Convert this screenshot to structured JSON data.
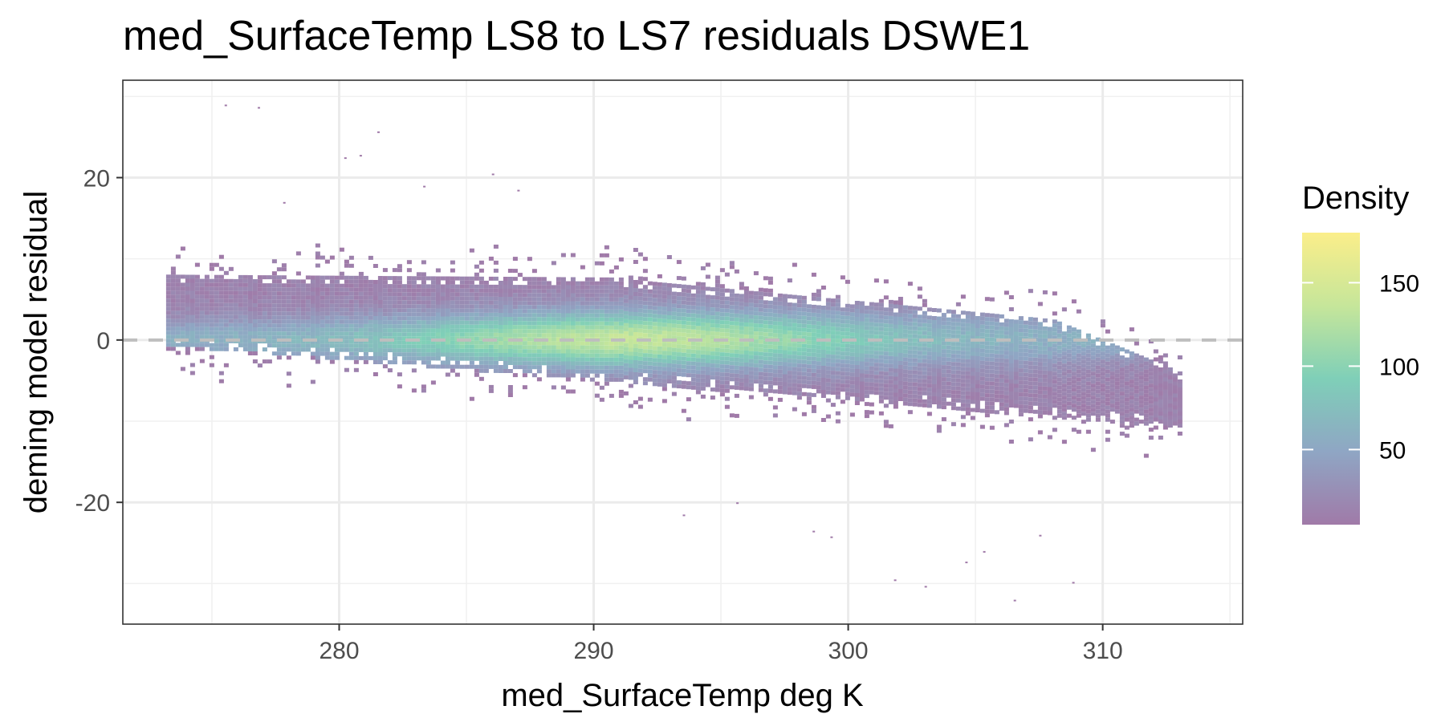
{
  "chart_data": {
    "type": "heatmap",
    "title": "med_SurfaceTemp LS8 to LS7 residuals DSWE1",
    "xlabel": "med_SurfaceTemp deg K",
    "ylabel": "deming model residual",
    "xlim": [
      271.5,
      315.5
    ],
    "ylim": [
      -35,
      32
    ],
    "x_ticks": [
      280,
      290,
      300,
      310
    ],
    "x_tick_labels": [
      "280",
      "290",
      "300",
      "310"
    ],
    "y_ticks": [
      -20,
      0,
      20
    ],
    "y_tick_labels": [
      "-20",
      "0",
      "20"
    ],
    "grid": true,
    "reference_line": {
      "y": 0,
      "style": "dashed",
      "color": "#bebebe"
    },
    "density_envelope": {
      "x_start": 273.2,
      "x_end": 313.0,
      "upper_at_start": 7.5,
      "upper_at_308": 3.0,
      "lower_at_start": -0.5,
      "lower_at_end": -10.5,
      "peak_density_center_x": 291.5,
      "peak_density_center_y": 0
    },
    "legend": {
      "title": "Density",
      "position": "right",
      "range": [
        5,
        180
      ],
      "ticks": [
        50,
        100,
        150
      ],
      "tick_labels": [
        "50",
        "100",
        "150"
      ],
      "colors": [
        "#a07aa8",
        "#8fa6c4",
        "#7fcfb8",
        "#c6e69a",
        "#fbee8a"
      ]
    }
  }
}
